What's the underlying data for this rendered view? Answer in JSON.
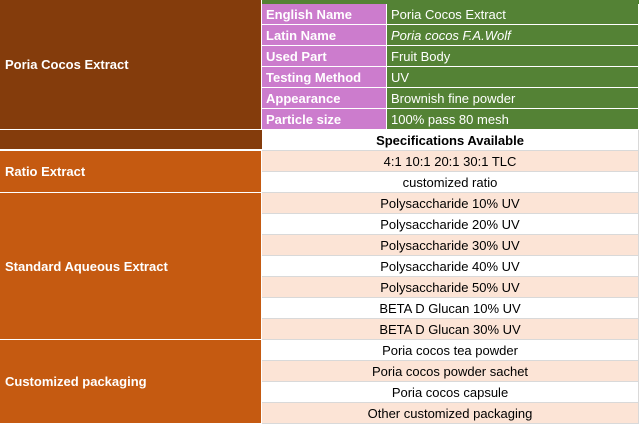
{
  "product": {
    "name": "Poria Cocos  Extract",
    "attributes": [
      {
        "label": "English Name",
        "value": "Poria Cocos  Extract",
        "italic": false
      },
      {
        "label": "Latin Name",
        "value": "Poria cocos F.A.Wolf",
        "italic": true
      },
      {
        "label": "Used Part",
        "value": "Fruit Body",
        "italic": false
      },
      {
        "label": "Testing Method",
        "value": "UV",
        "italic": false
      },
      {
        "label": "Appearance",
        "value": "Brownish fine powder",
        "italic": false
      },
      {
        "label": "Particle size",
        "value": "100% pass 80 mesh",
        "italic": false
      }
    ]
  },
  "specs_header": "Specifications Available",
  "groups": [
    {
      "label": "Ratio Extract",
      "rows": [
        "4:1 10:1 20:1 30:1 TLC",
        "customized ratio"
      ]
    },
    {
      "label": "Standard Aqueous Extract",
      "rows": [
        "Polysaccharide 10% UV",
        "Polysaccharide 20% UV",
        "Polysaccharide 30% UV",
        "Polysaccharide 40% UV",
        "Polysaccharide 50% UV",
        "BETA D Glucan 10% UV",
        "BETA D Glucan 30% UV"
      ]
    },
    {
      "label": "Customized packaging",
      "rows": [
        "Poria cocos  tea powder",
        "Poria cocos  powder sachet",
        "Poria cocos capsule",
        "Other customized packaging"
      ]
    }
  ],
  "colors": {
    "product_cell": "#843c0c",
    "group_cell": "#c55a11",
    "attribute_label": "#cc7ccd",
    "attribute_value": "#548235",
    "row_band": "#fce4d6"
  }
}
